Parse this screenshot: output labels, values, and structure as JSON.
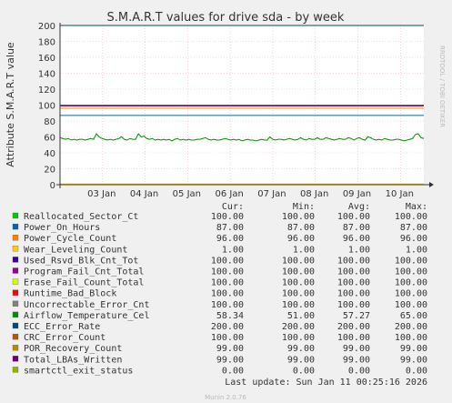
{
  "chart_data": {
    "type": "line",
    "title": "S.M.A.R.T values for drive sda - by week",
    "ylabel": "Attribute S.M.A.R.T value",
    "watermark": "RRDTOOL / TOBI OETIKER",
    "ylim": [
      0,
      200
    ],
    "yticks": [
      0,
      20,
      40,
      60,
      80,
      100,
      120,
      140,
      160,
      180,
      200
    ],
    "x_tick_labels": [
      "03 Jan",
      "04 Jan",
      "05 Jan",
      "06 Jan",
      "07 Jan",
      "08 Jan",
      "09 Jan",
      "10 Jan"
    ],
    "x_domain_note": "days",
    "x_range": [
      0,
      8.55
    ],
    "x_ticks_at": [
      1,
      2,
      3,
      4,
      5,
      6,
      7,
      8
    ],
    "grid": true,
    "columns": [
      "Cur:",
      "Min:",
      "Avg:",
      "Max:"
    ],
    "series": [
      {
        "name": "Reallocated_Sector_Ct",
        "color": "#00cc00",
        "cur": "100.00",
        "min": "100.00",
        "avg": "100.00",
        "max": "100.00",
        "flat": 100
      },
      {
        "name": "Power_On_Hours",
        "color": "#0066b3",
        "cur": "87.00",
        "min": "87.00",
        "avg": "87.00",
        "max": "87.00",
        "flat": 87
      },
      {
        "name": "Power_Cycle_Count",
        "color": "#ff8000",
        "cur": "96.00",
        "min": "96.00",
        "avg": "96.00",
        "max": "96.00",
        "flat": 96
      },
      {
        "name": "Wear_Leveling_Count",
        "color": "#ffcc00",
        "cur": "1.00",
        "min": "1.00",
        "avg": "1.00",
        "max": "1.00",
        "flat": 1
      },
      {
        "name": "Used_Rsvd_Blk_Cnt_Tot",
        "color": "#330099",
        "cur": "100.00",
        "min": "100.00",
        "avg": "100.00",
        "max": "100.00",
        "flat": 100
      },
      {
        "name": "Program_Fail_Cnt_Total",
        "color": "#990099",
        "cur": "100.00",
        "min": "100.00",
        "avg": "100.00",
        "max": "100.00",
        "flat": 100
      },
      {
        "name": "Erase_Fail_Count_Total",
        "color": "#ccff00",
        "cur": "100.00",
        "min": "100.00",
        "avg": "100.00",
        "max": "100.00",
        "flat": 100
      },
      {
        "name": "Runtime_Bad_Block",
        "color": "#ff0000",
        "cur": "100.00",
        "min": "100.00",
        "avg": "100.00",
        "max": "100.00",
        "flat": 100
      },
      {
        "name": "Uncorrectable_Error_Cnt",
        "color": "#808080",
        "cur": "100.00",
        "min": "100.00",
        "avg": "100.00",
        "max": "100.00",
        "flat": 100
      },
      {
        "name": "Airflow_Temperature_Cel",
        "color": "#008f00",
        "cur": "58.34",
        "min": "51.00",
        "avg": "57.27",
        "max": "65.00",
        "values": [
          59,
          58,
          57,
          58,
          56,
          57,
          56,
          57,
          57,
          56,
          57,
          58,
          57,
          64,
          60,
          58,
          57,
          56,
          57,
          56,
          57,
          58,
          60,
          57,
          56,
          58,
          57,
          57,
          64,
          60,
          61,
          58,
          57,
          58,
          56,
          57,
          56,
          57,
          56,
          57,
          55,
          57,
          58,
          56,
          57,
          56,
          57,
          56,
          56,
          57,
          57,
          58,
          59,
          57,
          56,
          57,
          56,
          56,
          57,
          58,
          57,
          56,
          57,
          56,
          57,
          55,
          56,
          57,
          56,
          56,
          55,
          56,
          57,
          56,
          56,
          60,
          57,
          56,
          57,
          57,
          56,
          57,
          58,
          57,
          56,
          57,
          59,
          57,
          56,
          58,
          57,
          57,
          59,
          57,
          57,
          59,
          58,
          57,
          56,
          57,
          58,
          57,
          57,
          59,
          58,
          56,
          58,
          59,
          57,
          56,
          60,
          59,
          57,
          56,
          57,
          56,
          58,
          57,
          56,
          56,
          57,
          57,
          56,
          55,
          56,
          57,
          58,
          63,
          64,
          59,
          58
        ]
      },
      {
        "name": "ECC_Error_Rate",
        "color": "#00487d",
        "cur": "200.00",
        "min": "200.00",
        "avg": "200.00",
        "max": "200.00",
        "flat": 200
      },
      {
        "name": "CRC_Error_Count",
        "color": "#b35a00",
        "cur": "100.00",
        "min": "100.00",
        "avg": "100.00",
        "max": "100.00",
        "flat": 100
      },
      {
        "name": "POR_Recovery_Count",
        "color": "#b38f00",
        "cur": "99.00",
        "min": "99.00",
        "avg": "99.00",
        "max": "99.00",
        "flat": 99
      },
      {
        "name": "Total_LBAs_Written",
        "color": "#6b006b",
        "cur": "99.00",
        "min": "99.00",
        "avg": "99.00",
        "max": "99.00",
        "flat": 99
      },
      {
        "name": "smartctl_exit_status",
        "color": "#8fb300",
        "cur": "0.00",
        "min": "0.00",
        "avg": "0.00",
        "max": "0.00",
        "flat": 0
      }
    ],
    "last_update": "Last update: Sun Jan 11 00:25:16 2026",
    "footer": "Munin 2.0.76"
  }
}
